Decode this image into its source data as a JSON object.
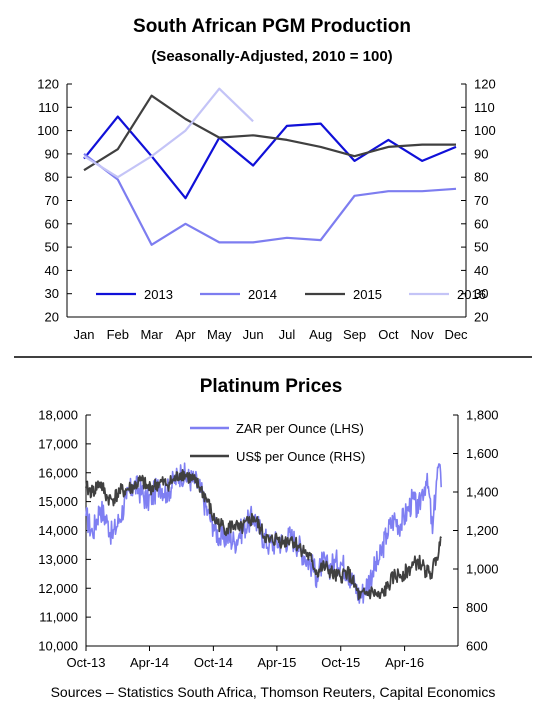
{
  "source": "Sources – Statistics South Africa, Thomson Reuters, Capital Economics",
  "chart_data": [
    {
      "type": "line",
      "title": "South African PGM Production",
      "subtitle": "(Seasonally-Adjusted, 2010 = 100)",
      "categories": [
        "Jan",
        "Feb",
        "Mar",
        "Apr",
        "May",
        "Jun",
        "Jul",
        "Aug",
        "Sep",
        "Oct",
        "Nov",
        "Dec"
      ],
      "ylim": [
        20,
        120
      ],
      "yticks": [
        20,
        30,
        40,
        50,
        60,
        70,
        80,
        90,
        100,
        110,
        120
      ],
      "y_axes": "left and right (same scale)",
      "legend_position": "bottom",
      "series": [
        {
          "name": "2013",
          "color": "#1010d8",
          "values": [
            88,
            106,
            89,
            71,
            97,
            85,
            102,
            103,
            87,
            96,
            87,
            93
          ]
        },
        {
          "name": "2014",
          "color": "#7d7df0",
          "values": [
            90,
            79,
            51,
            60,
            52,
            52,
            54,
            53,
            72,
            74,
            74,
            75
          ]
        },
        {
          "name": "2015",
          "color": "#404040",
          "values": [
            83,
            92,
            115,
            105,
            97,
            98,
            96,
            93,
            89,
            93,
            94,
            94
          ]
        },
        {
          "name": "2016",
          "color": "#c4c4f7",
          "values": [
            89,
            80,
            89,
            100,
            118,
            104,
            null,
            null,
            null,
            null,
            null,
            null
          ]
        }
      ]
    },
    {
      "type": "line",
      "title": "Platinum Prices",
      "x_ticks": [
        "Oct-13",
        "Apr-14",
        "Oct-14",
        "Apr-15",
        "Oct-15",
        "Apr-16"
      ],
      "x_range": [
        "2013-10-01",
        "2016-07-15"
      ],
      "y_left": {
        "range": [
          10000,
          18000
        ],
        "ticks": [
          "10,000",
          "11,000",
          "12,000",
          "13,000",
          "14,000",
          "15,000",
          "16,000",
          "17,000",
          "18,000"
        ]
      },
      "y_right": {
        "range": [
          600,
          1800
        ],
        "ticks": [
          "600",
          "800",
          "1,000",
          "1,200",
          "1,400",
          "1,600",
          "1,800"
        ]
      },
      "legend_position": "top-center",
      "series": [
        {
          "name": "ZAR per Ounce (LHS)",
          "color": "#7f7ff2",
          "axis": "left",
          "points": [
            [
              "2013-10-01",
              14500
            ],
            [
              "2013-10-20",
              13900
            ],
            [
              "2013-11-10",
              14800
            ],
            [
              "2013-12-01",
              14300
            ],
            [
              "2013-12-15",
              13800
            ],
            [
              "2014-01-05",
              14400
            ],
            [
              "2014-01-25",
              15100
            ],
            [
              "2014-02-15",
              15600
            ],
            [
              "2014-03-10",
              15300
            ],
            [
              "2014-03-25",
              15000
            ],
            [
              "2014-04-15",
              15300
            ],
            [
              "2014-05-01",
              15600
            ],
            [
              "2014-05-20",
              15300
            ],
            [
              "2014-06-10",
              15700
            ],
            [
              "2014-07-01",
              16000
            ],
            [
              "2014-07-20",
              15800
            ],
            [
              "2014-08-10",
              15700
            ],
            [
              "2014-08-25",
              15400
            ],
            [
              "2014-09-15",
              14600
            ],
            [
              "2014-10-01",
              14200
            ],
            [
              "2014-10-20",
              13700
            ],
            [
              "2014-11-10",
              13800
            ],
            [
              "2014-12-01",
              13600
            ],
            [
              "2014-12-15",
              13900
            ],
            [
              "2015-01-10",
              14300
            ],
            [
              "2015-01-25",
              14500
            ],
            [
              "2015-02-15",
              13900
            ],
            [
              "2015-03-10",
              13500
            ],
            [
              "2015-04-01",
              13600
            ],
            [
              "2015-04-20",
              13600
            ],
            [
              "2015-05-10",
              13800
            ],
            [
              "2015-06-01",
              13500
            ],
            [
              "2015-06-20",
              13100
            ],
            [
              "2015-07-10",
              12800
            ],
            [
              "2015-07-25",
              12400
            ],
            [
              "2015-08-10",
              12900
            ],
            [
              "2015-08-25",
              12700
            ],
            [
              "2015-09-15",
              12900
            ],
            [
              "2015-10-01",
              12900
            ],
            [
              "2015-10-20",
              12600
            ],
            [
              "2015-11-10",
              12100
            ],
            [
              "2015-11-25",
              11700
            ],
            [
              "2015-12-10",
              12000
            ],
            [
              "2016-01-01",
              12600
            ],
            [
              "2016-01-20",
              13000
            ],
            [
              "2016-02-10",
              13900
            ],
            [
              "2016-03-01",
              14400
            ],
            [
              "2016-03-20",
              14200
            ],
            [
              "2016-04-10",
              14700
            ],
            [
              "2016-04-25",
              15100
            ],
            [
              "2016-05-10",
              14600
            ],
            [
              "2016-05-20",
              15300
            ],
            [
              "2016-06-01",
              15700
            ],
            [
              "2016-06-10",
              15300
            ],
            [
              "2016-06-20",
              13900
            ],
            [
              "2016-07-01",
              15700
            ],
            [
              "2016-07-08",
              16300
            ],
            [
              "2016-07-15",
              15500
            ]
          ]
        },
        {
          "name": "US$ per Ounce (RHS)",
          "color": "#404040",
          "axis": "right",
          "points": [
            [
              "2013-10-01",
              1420
            ],
            [
              "2013-10-20",
              1400
            ],
            [
              "2013-11-10",
              1450
            ],
            [
              "2013-12-01",
              1370
            ],
            [
              "2013-12-15",
              1360
            ],
            [
              "2014-01-05",
              1400
            ],
            [
              "2014-01-25",
              1410
            ],
            [
              "2014-02-15",
              1430
            ],
            [
              "2014-03-10",
              1460
            ],
            [
              "2014-03-25",
              1420
            ],
            [
              "2014-04-15",
              1430
            ],
            [
              "2014-05-01",
              1450
            ],
            [
              "2014-05-20",
              1440
            ],
            [
              "2014-06-10",
              1460
            ],
            [
              "2014-07-01",
              1500
            ],
            [
              "2014-07-20",
              1480
            ],
            [
              "2014-08-10",
              1450
            ],
            [
              "2014-08-25",
              1420
            ],
            [
              "2014-09-15",
              1350
            ],
            [
              "2014-10-01",
              1260
            ],
            [
              "2014-10-20",
              1230
            ],
            [
              "2014-11-10",
              1210
            ],
            [
              "2014-12-01",
              1230
            ],
            [
              "2014-12-15",
              1200
            ],
            [
              "2015-01-10",
              1240
            ],
            [
              "2015-01-25",
              1270
            ],
            [
              "2015-02-15",
              1200
            ],
            [
              "2015-03-10",
              1140
            ],
            [
              "2015-04-01",
              1160
            ],
            [
              "2015-04-20",
              1140
            ],
            [
              "2015-05-10",
              1160
            ],
            [
              "2015-06-01",
              1120
            ],
            [
              "2015-06-20",
              1090
            ],
            [
              "2015-07-10",
              1040
            ],
            [
              "2015-07-25",
              980
            ],
            [
              "2015-08-10",
              1010
            ],
            [
              "2015-08-25",
              1000
            ],
            [
              "2015-09-15",
              960
            ],
            [
              "2015-10-01",
              960
            ],
            [
              "2015-10-20",
              990
            ],
            [
              "2015-11-10",
              910
            ],
            [
              "2015-11-25",
              850
            ],
            [
              "2015-12-10",
              870
            ],
            [
              "2016-01-01",
              880
            ],
            [
              "2016-01-20",
              850
            ],
            [
              "2016-02-10",
              900
            ],
            [
              "2016-03-01",
              960
            ],
            [
              "2016-03-20",
              970
            ],
            [
              "2016-04-10",
              990
            ],
            [
              "2016-04-25",
              1020
            ],
            [
              "2016-05-10",
              1040
            ],
            [
              "2016-05-20",
              1020
            ],
            [
              "2016-06-01",
              990
            ],
            [
              "2016-06-10",
              980
            ],
            [
              "2016-06-20",
              990
            ],
            [
              "2016-07-01",
              1060
            ],
            [
              "2016-07-08",
              1090
            ],
            [
              "2016-07-15",
              1160
            ]
          ]
        }
      ]
    }
  ]
}
